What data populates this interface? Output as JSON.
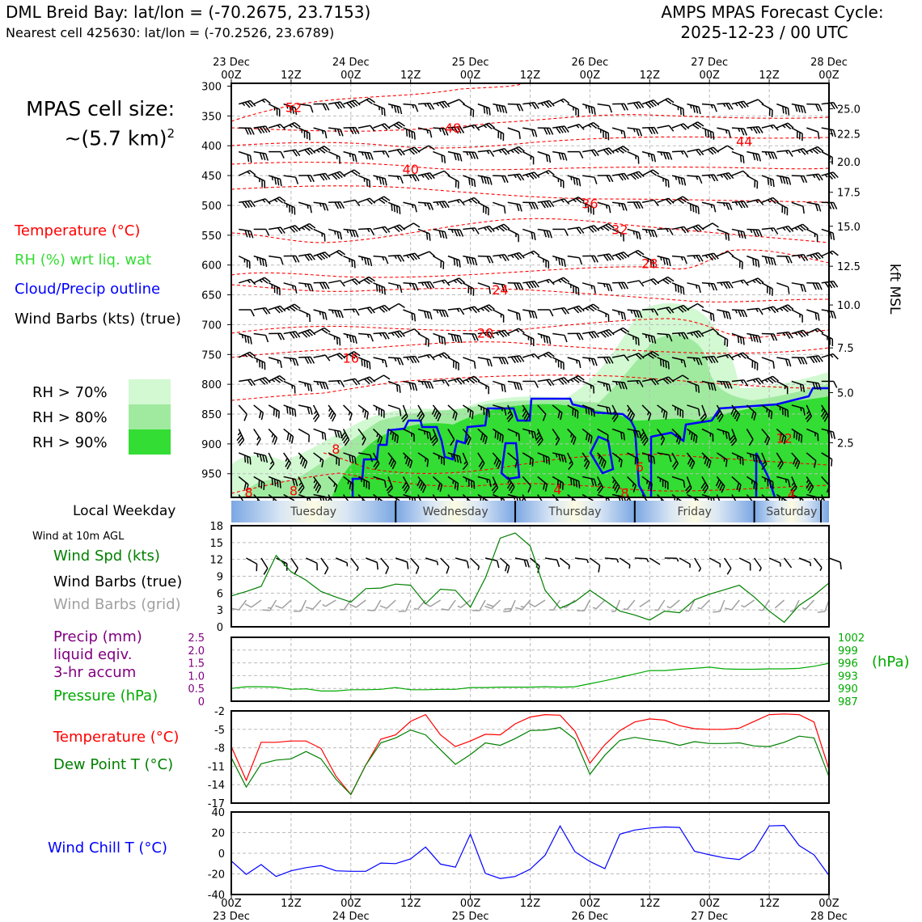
{
  "header": {
    "station": "DML Breid Bay: lat/lon = (-70.2675, 23.7153)",
    "nearest": "Nearest cell 425630: lat/lon = (-70.2526, 23.6789)",
    "cycle_title": "AMPS MPAS Forecast Cycle:",
    "cycle_time": "2025-12-23 / 00 UTC"
  },
  "side": {
    "cell_size_label": "MPAS cell size:",
    "cell_size_value": "~(5.7 km)",
    "cell_size_exp": "2",
    "legend_temp": "Temperature (°C)",
    "legend_rh": "RH (%) wrt liq. wat",
    "legend_cloud": "Cloud/Precip outline",
    "legend_wind": "Wind Barbs (kts) (true)",
    "rh_70": "RH > 70%",
    "rh_80": "RH > 80%",
    "rh_90": "RH > 90%",
    "local_weekday": "Local Weekday",
    "wind_10m": "Wind at 10m AGL",
    "wind_spd": "Wind Spd (kts)",
    "wind_barbs_true": "Wind Barbs (true)",
    "wind_barbs_grid": "Wind Barbs (grid)",
    "precip_1": "Precip (mm)",
    "precip_2": "liquid eqiv.",
    "precip_3": "3-hr accum",
    "pressure": "Pressure (hPa)",
    "temp": "Temperature (°C)",
    "dewpoint": "Dew Point T (°C)",
    "windchill": "Wind Chill T (°C)",
    "kft_label": "kft MSL",
    "hpa_label": "(hPa)"
  },
  "colors": {
    "temp": "#ff0000",
    "rh_legend": "#33dd33",
    "cloud": "#0000ff",
    "wind_spd": "#008000",
    "grid_barbs": "#a0a0a0",
    "precip": "#800080",
    "pressure": "#00aa00",
    "dewpoint": "#008000",
    "windchill": "#0000ff",
    "rh70": "#d2f9d2",
    "rh80": "#a0eaa0",
    "rh90": "#33dd33"
  },
  "chart_data": [
    {
      "type": "cross-section",
      "name": "upper-air time-height section",
      "x": {
        "start": "2025-12-23 00Z",
        "end": "2025-12-28 00Z",
        "step_hours": 12
      },
      "top_tick_days": [
        "23 Dec",
        "24 Dec",
        "25 Dec",
        "26 Dec",
        "27 Dec",
        "28 Dec"
      ],
      "top_tick_hours": [
        "00Z",
        "12Z",
        "00Z",
        "12Z",
        "00Z",
        "12Z",
        "00Z",
        "12Z",
        "00Z",
        "12Z",
        "00Z"
      ],
      "y_pressure_ticks": [
        300,
        350,
        400,
        450,
        500,
        550,
        600,
        650,
        700,
        750,
        800,
        850,
        900,
        950
      ],
      "ylim_hpa": [
        990,
        300
      ],
      "y_kft_ticks": [
        "25.0",
        "22.5",
        "20.0",
        "17.5",
        "15.0",
        "12.5",
        "10.0",
        "7.5",
        "5.0",
        "2.5"
      ],
      "y_kft_hpa": [
        338,
        380,
        427,
        478,
        535,
        602,
        667,
        739,
        814,
        898
      ],
      "temperature_labels": [
        {
          "text": "52",
          "hour": 12.5,
          "hpa": 335
        },
        {
          "text": "48",
          "hour": 44.5,
          "hpa": 370
        },
        {
          "text": "44",
          "hour": 103,
          "hpa": 392
        },
        {
          "text": "40",
          "hour": 36,
          "hpa": 439
        },
        {
          "text": "36",
          "hour": 72,
          "hpa": 497
        },
        {
          "text": "32",
          "hour": 78,
          "hpa": 540
        },
        {
          "text": "28",
          "hour": 84,
          "hpa": 597
        },
        {
          "text": "24",
          "hour": 54,
          "hpa": 641
        },
        {
          "text": "20",
          "hour": 51,
          "hpa": 714
        },
        {
          "text": "16",
          "hour": 24,
          "hpa": 756
        },
        {
          "text": "12",
          "hour": 111,
          "hpa": 890
        },
        {
          "text": "8",
          "hour": 21,
          "hpa": 908
        },
        {
          "text": "6",
          "hour": 82,
          "hpa": 938
        },
        {
          "text": "8",
          "hour": 3.5,
          "hpa": 981
        },
        {
          "text": "8",
          "hour": 12.5,
          "hpa": 978
        },
        {
          "text": "8",
          "hour": 79,
          "hpa": 982
        },
        {
          "text": "4",
          "hour": 65.5,
          "hpa": 976
        },
        {
          "text": "4",
          "hour": 112.5,
          "hpa": 984
        }
      ],
      "weekdays": [
        "Tuesday",
        "Wednesday",
        "Thursday",
        "Friday",
        "Saturday"
      ]
    },
    {
      "type": "line",
      "name": "surface wind speed",
      "title": "Wind at 10m AGL",
      "ylabel": "Wind Spd (kts)",
      "ylim": [
        0,
        18
      ],
      "yticks": [
        0,
        3,
        6,
        9,
        12,
        15,
        18
      ],
      "hours": [
        0,
        3,
        6,
        9,
        12,
        15,
        18,
        21,
        24,
        27,
        30,
        33,
        36,
        39,
        42,
        45,
        48,
        51,
        54,
        57,
        60,
        63,
        66,
        69,
        72,
        75,
        78,
        81,
        84,
        87,
        90,
        93,
        96,
        99,
        102,
        105,
        108,
        111,
        114,
        117,
        120
      ],
      "values": [
        5.5,
        6.3,
        7.2,
        12.7,
        9.8,
        8.3,
        6.3,
        5.3,
        4.4,
        6.8,
        6.9,
        7.6,
        7.4,
        4.1,
        6.7,
        6.5,
        3.5,
        8.7,
        15.8,
        16.7,
        14.4,
        6.5,
        3.3,
        4.5,
        6.5,
        4.7,
        2.8,
        2.1,
        1.2,
        2.8,
        2.5,
        4.8,
        5.8,
        6.6,
        7.4,
        5.3,
        2.8,
        0.8,
        3.8,
        5.6,
        7.8
      ]
    },
    {
      "type": "line",
      "name": "surface pressure and precip",
      "ylabel_left": "Precip (mm)",
      "ylim_precip": [
        0,
        2.5
      ],
      "precip_ticks": [
        "2.5",
        "2.0",
        "1.5",
        "1.0",
        "0.5",
        "0"
      ],
      "ylabel_right": "Pressure (hPa)",
      "ylim_pressure": [
        987,
        1002
      ],
      "pressure_ticks": [
        1002,
        999,
        996,
        993,
        990,
        987
      ],
      "hours": [
        0,
        3,
        6,
        9,
        12,
        15,
        18,
        21,
        24,
        27,
        30,
        33,
        36,
        39,
        42,
        45,
        48,
        51,
        54,
        57,
        60,
        63,
        66,
        69,
        72,
        75,
        78,
        81,
        84,
        87,
        90,
        93,
        96,
        99,
        102,
        105,
        108,
        111,
        114,
        117,
        120
      ],
      "pressure": [
        990.0,
        990.4,
        990.4,
        990.3,
        989.8,
        989.9,
        989.4,
        989.4,
        989.7,
        989.7,
        989.8,
        990.2,
        989.7,
        989.7,
        989.8,
        989.8,
        990.2,
        990.2,
        990.3,
        990.3,
        990.3,
        990.4,
        990.3,
        990.4,
        991.1,
        991.8,
        992.6,
        993.4,
        994.2,
        994.2,
        994.5,
        994.7,
        995.0,
        994.6,
        994.5,
        994.5,
        994.6,
        994.6,
        994.7,
        995.2,
        995.9
      ]
    },
    {
      "type": "line",
      "name": "surface temperature and dew point",
      "ylabel": "Temperature (°C)",
      "ylim": [
        -17,
        -2
      ],
      "yticks": [
        -2,
        -5,
        -8,
        -11,
        -14,
        -17
      ],
      "hours": [
        0,
        3,
        6,
        9,
        12,
        15,
        18,
        21,
        24,
        27,
        30,
        33,
        36,
        39,
        42,
        45,
        48,
        51,
        54,
        57,
        60,
        63,
        66,
        69,
        72,
        75,
        78,
        81,
        84,
        87,
        90,
        93,
        96,
        99,
        102,
        105,
        108,
        111,
        114,
        117,
        120
      ],
      "series": [
        {
          "name": "Temperature (°C)",
          "values": [
            -7.8,
            -13.3,
            -7.1,
            -7.1,
            -6.9,
            -6.9,
            -8.1,
            -12.6,
            -15.6,
            -10.8,
            -6.6,
            -5.9,
            -3.7,
            -2.6,
            -5.9,
            -7.8,
            -6.9,
            -5.8,
            -5.9,
            -4.1,
            -3.0,
            -2.6,
            -2.7,
            -5.3,
            -10.5,
            -7.5,
            -5.2,
            -3.8,
            -3.3,
            -3.5,
            -4.4,
            -4.9,
            -5.0,
            -5.0,
            -4.8,
            -3.7,
            -2.6,
            -2.5,
            -2.6,
            -3.8,
            -11.5
          ]
        },
        {
          "name": "Dew Point T (°C)",
          "values": [
            -9.6,
            -14.4,
            -10.6,
            -10.0,
            -9.8,
            -8.6,
            -9.8,
            -13.1,
            -15.6,
            -10.8,
            -7.2,
            -6.4,
            -5.1,
            -5.9,
            -8.3,
            -10.7,
            -9.1,
            -7.2,
            -7.6,
            -6.5,
            -5.2,
            -5.1,
            -4.7,
            -6.6,
            -12.3,
            -9.2,
            -6.8,
            -6.3,
            -6.7,
            -7.0,
            -7.6,
            -7.0,
            -7.3,
            -7.3,
            -7.2,
            -7.7,
            -7.8,
            -7.1,
            -6.1,
            -6.4,
            -12.7
          ]
        }
      ]
    },
    {
      "type": "line",
      "name": "wind chill",
      "ylabel": "Wind Chill T (°C)",
      "ylim": [
        -40,
        40
      ],
      "yticks": [
        40,
        20,
        0,
        -20,
        -40
      ],
      "bottom_tick_hours": [
        "00Z",
        "12Z",
        "00Z",
        "12Z",
        "00Z",
        "12Z",
        "00Z",
        "12Z",
        "00Z",
        "12Z",
        "00Z"
      ],
      "bottom_tick_days": [
        "23 Dec",
        "24 Dec",
        "25 Dec",
        "26 Dec",
        "27 Dec",
        "28 Dec"
      ],
      "hours": [
        0,
        3,
        6,
        9,
        12,
        15,
        18,
        21,
        24,
        27,
        30,
        33,
        36,
        39,
        42,
        45,
        48,
        51,
        54,
        57,
        60,
        63,
        66,
        69,
        72,
        75,
        78,
        81,
        84,
        87,
        90,
        93,
        96,
        99,
        102,
        105,
        108,
        111,
        114,
        117,
        120
      ],
      "values": [
        -7.5,
        -20.5,
        -11.0,
        -22.5,
        -17.0,
        -14.0,
        -12.0,
        -17.0,
        -17.5,
        -17.5,
        -9.5,
        -10.0,
        -5.5,
        6.0,
        -10.5,
        -13.5,
        18.5,
        -19.5,
        -24.5,
        -22.5,
        -15.5,
        -2.0,
        26.5,
        1.5,
        -8.0,
        -15.0,
        18.5,
        22.5,
        24.5,
        25.5,
        25.0,
        2.0,
        -1.5,
        -4.5,
        -6.0,
        3.0,
        26.5,
        27.0,
        7.5,
        -1.5,
        -21.5
      ]
    }
  ]
}
